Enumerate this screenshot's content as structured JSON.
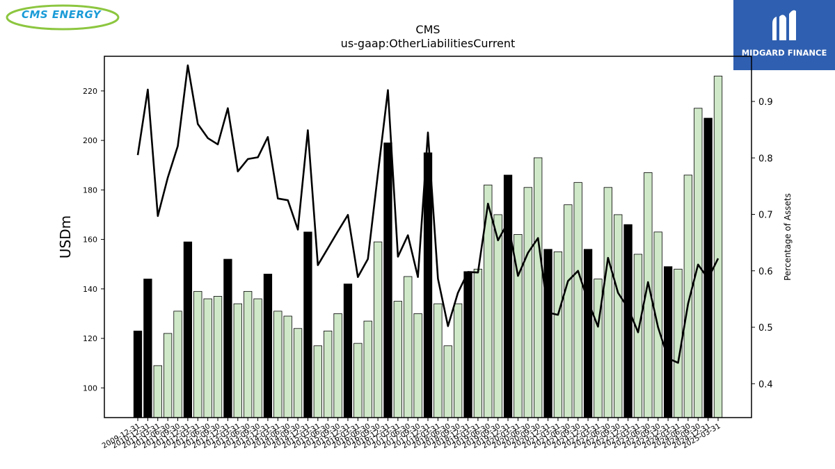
{
  "logos": {
    "left_brand": "CMS ENERGY",
    "right_brand": "MIDGARD FINANCE",
    "left_brand_color": "#1a9bd7",
    "left_swoosh_color": "#8cc63f",
    "right_bg_color": "#2f5fb0"
  },
  "chart_data": {
    "type": "bar",
    "title": "CMS",
    "subtitle": "us-gaap:OtherLiabilitiesCurrent",
    "ylabel": "USDm",
    "y2label": "Percentage of Assets",
    "ylim": [
      88,
      234
    ],
    "y2lim": [
      0.34,
      0.98
    ],
    "yticks": [
      100,
      120,
      140,
      160,
      180,
      200,
      220
    ],
    "y2ticks": [
      0.4,
      0.5,
      0.6,
      0.7,
      0.8,
      0.9
    ],
    "bar_colors": {
      "annual": "#000000",
      "quarterly": "#cfe8c8"
    },
    "line_color": "#000000",
    "categories": [
      "2009-12-31",
      "2010-12-31",
      "2011-03-31",
      "2011-06-30",
      "2011-09-30",
      "2011-12-31",
      "2012-03-31",
      "2012-06-30",
      "2012-09-30",
      "2012-12-31",
      "2013-03-31",
      "2013-06-30",
      "2013-09-30",
      "2013-12-31",
      "2014-03-31",
      "2014-06-30",
      "2014-09-30",
      "2014-12-31",
      "2015-03-31",
      "2015-06-30",
      "2015-09-30",
      "2015-12-31",
      "2016-03-31",
      "2016-06-30",
      "2016-09-30",
      "2016-12-31",
      "2017-03-31",
      "2017-06-30",
      "2017-09-30",
      "2017-12-31",
      "2018-03-31",
      "2018-06-30",
      "2018-09-30",
      "2018-12-31",
      "2019-03-31",
      "2019-06-30",
      "2019-09-30",
      "2019-12-31",
      "2020-03-31",
      "2020-06-30",
      "2020-09-30",
      "2020-12-31",
      "2021-03-31",
      "2021-06-30",
      "2021-09-30",
      "2021-12-31",
      "2022-03-31",
      "2022-06-30",
      "2022-09-30",
      "2022-12-31",
      "2023-03-31",
      "2023-06-30",
      "2023-09-30",
      "2023-12-31",
      "2024-03-31",
      "2024-06-30",
      "2024-09-30",
      "2024-12-31",
      "2025-03-31"
    ],
    "annual_flags": [
      1,
      1,
      0,
      0,
      0,
      1,
      0,
      0,
      0,
      1,
      0,
      0,
      0,
      1,
      0,
      0,
      0,
      1,
      0,
      0,
      0,
      1,
      0,
      0,
      0,
      1,
      0,
      0,
      0,
      1,
      0,
      0,
      0,
      1,
      0,
      0,
      0,
      1,
      0,
      0,
      0,
      1,
      0,
      0,
      0,
      1,
      0,
      0,
      0,
      1,
      0,
      0,
      0,
      1,
      0,
      0,
      0,
      1,
      0
    ],
    "series": [
      {
        "kind": "bar",
        "values": [
          123,
          144,
          109,
          122,
          131,
          159,
          139,
          136,
          137,
          152,
          134,
          139,
          136,
          146,
          131,
          129,
          124,
          163,
          117,
          123,
          130,
          142,
          118,
          127,
          159,
          199,
          135,
          145,
          130,
          195,
          134,
          117,
          134,
          147,
          148,
          182,
          170,
          186,
          162,
          181,
          193,
          156,
          155,
          174,
          183,
          156,
          144,
          181,
          170,
          166,
          154,
          187,
          163,
          149,
          148,
          186,
          213,
          209,
          226
        ]
      },
      {
        "kind": "line",
        "axis": "right",
        "values": [
          0.805,
          0.921,
          0.697,
          0.765,
          0.821,
          0.964,
          0.86,
          0.835,
          0.824,
          0.888,
          0.776,
          0.798,
          0.801,
          0.837,
          0.728,
          0.725,
          0.673,
          0.849,
          0.61,
          0.64,
          0.67,
          0.699,
          0.589,
          0.621,
          0.772,
          0.92,
          0.625,
          0.663,
          0.589,
          0.845,
          0.586,
          0.502,
          0.561,
          0.598,
          0.597,
          0.719,
          0.654,
          0.686,
          0.591,
          0.632,
          0.658,
          0.526,
          0.522,
          0.582,
          0.6,
          0.546,
          0.501,
          0.623,
          0.561,
          0.534,
          0.491,
          0.58,
          0.5,
          0.445,
          0.437,
          0.542,
          0.611,
          0.586,
          0.622
        ]
      }
    ]
  }
}
